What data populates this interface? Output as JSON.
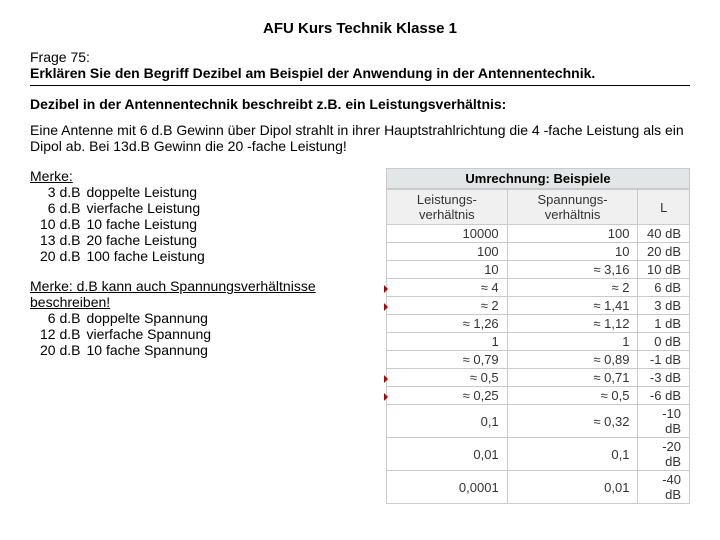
{
  "title": "AFU Kurs Technik Klasse 1",
  "question_label": "Frage 75:",
  "question_text": "Erklären Sie den Begriff Dezibel am Beispiel der Anwendung in der Antennentechnik.",
  "answer_heading": "Dezibel in der Antennentechnik beschreibt z.B. ein Leistungsverhältnis:",
  "answer_body": "Eine Antenne mit 6 d.B Gewinn über Dipol strahlt in ihrer Hauptstrahlrichtung die 4 -fache Leistung als ein Dipol ab. Bei 13d.B Gewinn die 20 -fache Leistung!",
  "merke1": {
    "label": "Merke:",
    "rows": [
      {
        "db": "3 d.B",
        "text": "doppelte Leistung"
      },
      {
        "db": "6 d.B",
        "text": "vierfache Leistung"
      },
      {
        "db": "10 d.B",
        "text": "10 fache Leistung"
      },
      {
        "db": "13 d.B",
        "text": "20 fache Leistung"
      },
      {
        "db": "20 d.B",
        "text": "100 fache Leistung"
      }
    ]
  },
  "merke2": {
    "label": "Merke: d.B kann auch Spannungsverhältnisse beschreiben!",
    "rows": [
      {
        "db": "6 d.B",
        "text": "doppelte Spannung"
      },
      {
        "db": "12 d.B",
        "text": "vierfache Spannung"
      },
      {
        "db": "20 d.B",
        "text": "10 fache Spannung"
      }
    ]
  },
  "conversion_table": {
    "caption": "Umrechnung: Beispiele",
    "headers": [
      "Leistungs-\nverhältnis",
      "Spannungs-\nverhältnis",
      "L"
    ],
    "rows": [
      {
        "p": "10000",
        "u": "100",
        "l": "40 dB",
        "m": false
      },
      {
        "p": "100",
        "u": "10",
        "l": "20 dB",
        "m": false
      },
      {
        "p": "10",
        "u": "≈ 3,16",
        "l": "10 dB",
        "m": false
      },
      {
        "p": "≈ 4",
        "u": "≈ 2",
        "l": "6 dB",
        "m": true
      },
      {
        "p": "≈ 2",
        "u": "≈ 1,41",
        "l": "3 dB",
        "m": true
      },
      {
        "p": "≈ 1,26",
        "u": "≈ 1,12",
        "l": "1 dB",
        "m": false
      },
      {
        "p": "1",
        "u": "1",
        "l": "0 dB",
        "m": false
      },
      {
        "p": "≈ 0,79",
        "u": "≈ 0,89",
        "l": "-1 dB",
        "m": false
      },
      {
        "p": "≈ 0,5",
        "u": "≈ 0,71",
        "l": "-3 dB",
        "m": true
      },
      {
        "p": "≈ 0,25",
        "u": "≈ 0,5",
        "l": "-6 dB",
        "m": true
      },
      {
        "p": "0,1",
        "u": "≈ 0,32",
        "l": "-10 dB",
        "m": false
      },
      {
        "p": "0,01",
        "u": "0,1",
        "l": "-20 dB",
        "m": false
      },
      {
        "p": "0,0001",
        "u": "0,01",
        "l": "-40 dB",
        "m": false
      }
    ]
  }
}
